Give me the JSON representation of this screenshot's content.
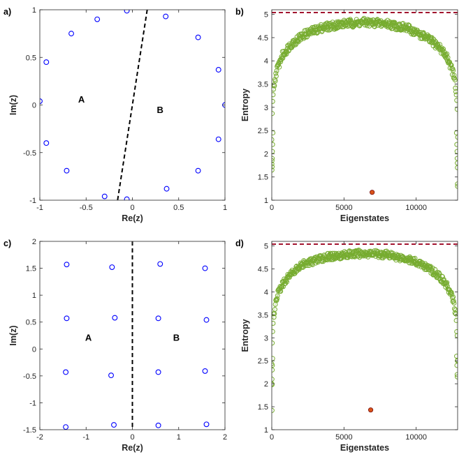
{
  "chart_data": [
    {
      "panel_label": "a)",
      "type": "scatter",
      "xlabel": "Re(z)",
      "ylabel": "Im(z)",
      "xlim": [
        -1,
        1
      ],
      "ylim": [
        -1,
        1
      ],
      "xticks": [
        -1,
        -0.5,
        0,
        0.5,
        1
      ],
      "yticks": [
        -1,
        -0.5,
        0,
        0.5,
        1
      ],
      "xtick_labels": [
        "-1",
        "-0.5",
        "0",
        "0.5",
        "1"
      ],
      "ytick_labels": [
        "-1",
        "-0.5",
        "0",
        "0.5",
        "1"
      ],
      "marker_color": "#0000ff",
      "points": [
        [
          -0.06,
          0.99
        ],
        [
          0.36,
          0.93
        ],
        [
          0.71,
          0.71
        ],
        [
          0.93,
          0.37
        ],
        [
          1.0,
          0.0
        ],
        [
          0.93,
          -0.36
        ],
        [
          0.71,
          -0.69
        ],
        [
          0.37,
          -0.88
        ],
        [
          -0.06,
          -0.99
        ],
        [
          -0.3,
          -0.96
        ],
        [
          -0.71,
          -0.69
        ],
        [
          -0.93,
          -0.4
        ],
        [
          -1.0,
          0.04
        ],
        [
          -0.93,
          0.45
        ],
        [
          -0.66,
          0.75
        ],
        [
          -0.38,
          0.9
        ]
      ],
      "divider": [
        [
          0.16,
          1.0
        ],
        [
          -0.16,
          -1.0
        ]
      ],
      "regions": [
        {
          "label": "A",
          "x": -0.55,
          "y": 0.05
        },
        {
          "label": "B",
          "x": 0.3,
          "y": -0.06
        }
      ]
    },
    {
      "panel_label": "b)",
      "type": "scatter",
      "xlabel": "Eigenstates",
      "ylabel": "Entropy",
      "xlim": [
        0,
        12870
      ],
      "ylim": [
        1,
        5.1
      ],
      "xticks": [
        0,
        5000,
        10000
      ],
      "yticks": [
        1,
        1.5,
        2,
        2.5,
        3,
        3.5,
        4,
        4.5,
        5
      ],
      "xtick_labels": [
        "0",
        "5000",
        "10000"
      ],
      "ytick_labels": [
        "1",
        "1.5",
        "2",
        "2.5",
        "3",
        "3.5",
        "4",
        "4.5",
        "5"
      ],
      "band_color": "#77ac30",
      "band_center": [
        [
          0,
          2.3
        ],
        [
          40,
          2.95
        ],
        [
          120,
          3.35
        ],
        [
          300,
          3.75
        ],
        [
          700,
          4.1
        ],
        [
          1300,
          4.35
        ],
        [
          2200,
          4.56
        ],
        [
          3500,
          4.72
        ],
        [
          5000,
          4.8
        ],
        [
          6435,
          4.83
        ],
        [
          8000,
          4.8
        ],
        [
          9400,
          4.7
        ],
        [
          10700,
          4.5
        ],
        [
          11600,
          4.3
        ],
        [
          12200,
          4.05
        ],
        [
          12600,
          3.7
        ],
        [
          12780,
          3.3
        ],
        [
          12840,
          2.9
        ],
        [
          12870,
          2.3
        ]
      ],
      "band_halfwidth": 0.07,
      "low_outliers": [
        [
          10,
          1.78
        ],
        [
          15,
          1.65
        ],
        [
          20,
          1.85
        ],
        [
          25,
          1.72
        ],
        [
          30,
          1.9
        ],
        [
          40,
          2.05
        ],
        [
          55,
          2.2
        ],
        [
          80,
          2.45
        ],
        [
          12790,
          2.45
        ],
        [
          12815,
          2.2
        ],
        [
          12830,
          2.05
        ],
        [
          12840,
          1.9
        ],
        [
          12850,
          1.8
        ],
        [
          12855,
          1.7
        ],
        [
          12860,
          1.35
        ],
        [
          12862,
          1.3
        ]
      ],
      "reference_line": {
        "y": 5.04,
        "color": "#a2142f"
      },
      "special_point": {
        "x": 6950,
        "y": 1.17,
        "color": "#d95319"
      }
    },
    {
      "panel_label": "c)",
      "type": "scatter",
      "xlabel": "Re(z)",
      "ylabel": "Im(z)",
      "xlim": [
        -2,
        2
      ],
      "ylim": [
        -1.5,
        2
      ],
      "xticks": [
        -2,
        -1,
        0,
        1,
        2
      ],
      "yticks": [
        -1.5,
        -1,
        -0.5,
        0,
        0.5,
        1,
        1.5,
        2
      ],
      "xtick_labels": [
        "-2",
        "-1",
        "0",
        "1",
        "2"
      ],
      "ytick_labels": [
        "-1.5",
        "-1",
        "-0.5",
        "0",
        "0.5",
        "1",
        "1.5",
        "2"
      ],
      "marker_color": "#0000ff",
      "points": [
        [
          -1.42,
          1.57
        ],
        [
          -0.44,
          1.52
        ],
        [
          0.6,
          1.58
        ],
        [
          1.57,
          1.5
        ],
        [
          -1.42,
          0.57
        ],
        [
          -0.38,
          0.58
        ],
        [
          0.56,
          0.57
        ],
        [
          1.6,
          0.54
        ],
        [
          -1.44,
          -0.43
        ],
        [
          -0.46,
          -0.49
        ],
        [
          0.56,
          -0.43
        ],
        [
          1.57,
          -0.41
        ],
        [
          -1.44,
          -1.45
        ],
        [
          -0.4,
          -1.41
        ],
        [
          0.56,
          -1.42
        ],
        [
          1.6,
          -1.4
        ]
      ],
      "divider": [
        [
          0,
          2
        ],
        [
          0,
          -1.5
        ]
      ],
      "regions": [
        {
          "label": "A",
          "x": -0.95,
          "y": 0.2
        },
        {
          "label": "B",
          "x": 0.95,
          "y": 0.2
        }
      ]
    },
    {
      "panel_label": "d)",
      "type": "scatter",
      "xlabel": "Eigenstates",
      "ylabel": "Entropy",
      "xlim": [
        0,
        12870
      ],
      "ylim": [
        1,
        5.1
      ],
      "xticks": [
        0,
        5000,
        10000
      ],
      "yticks": [
        1,
        1.5,
        2,
        2.5,
        3,
        3.5,
        4,
        4.5,
        5
      ],
      "xtick_labels": [
        "0",
        "5000",
        "10000"
      ],
      "ytick_labels": [
        "1",
        "1.5",
        "2",
        "2.5",
        "3",
        "3.5",
        "4",
        "4.5",
        "5"
      ],
      "band_color": "#77ac30",
      "band_center": [
        [
          0,
          2.5
        ],
        [
          40,
          3.1
        ],
        [
          120,
          3.45
        ],
        [
          300,
          3.85
        ],
        [
          700,
          4.15
        ],
        [
          1300,
          4.4
        ],
        [
          2200,
          4.6
        ],
        [
          3500,
          4.74
        ],
        [
          5000,
          4.81
        ],
        [
          6435,
          4.84
        ],
        [
          8000,
          4.81
        ],
        [
          9400,
          4.72
        ],
        [
          10700,
          4.55
        ],
        [
          11600,
          4.35
        ],
        [
          12200,
          4.1
        ],
        [
          12600,
          3.8
        ],
        [
          12780,
          3.4
        ],
        [
          12840,
          3.0
        ],
        [
          12870,
          2.5
        ]
      ],
      "band_halfwidth": 0.065,
      "low_outliers": [
        [
          10,
          2.0
        ],
        [
          15,
          2.1
        ],
        [
          20,
          1.98
        ],
        [
          30,
          2.3
        ],
        [
          40,
          2.4
        ],
        [
          60,
          2.55
        ],
        [
          20,
          1.42
        ],
        [
          12800,
          2.6
        ],
        [
          12820,
          2.4
        ],
        [
          12835,
          2.2
        ],
        [
          12845,
          2.15
        ],
        [
          12855,
          2.5
        ]
      ],
      "reference_line": {
        "y": 5.04,
        "color": "#a2142f"
      },
      "special_point": {
        "x": 6850,
        "y": 1.43,
        "color": "#d95319"
      }
    }
  ]
}
